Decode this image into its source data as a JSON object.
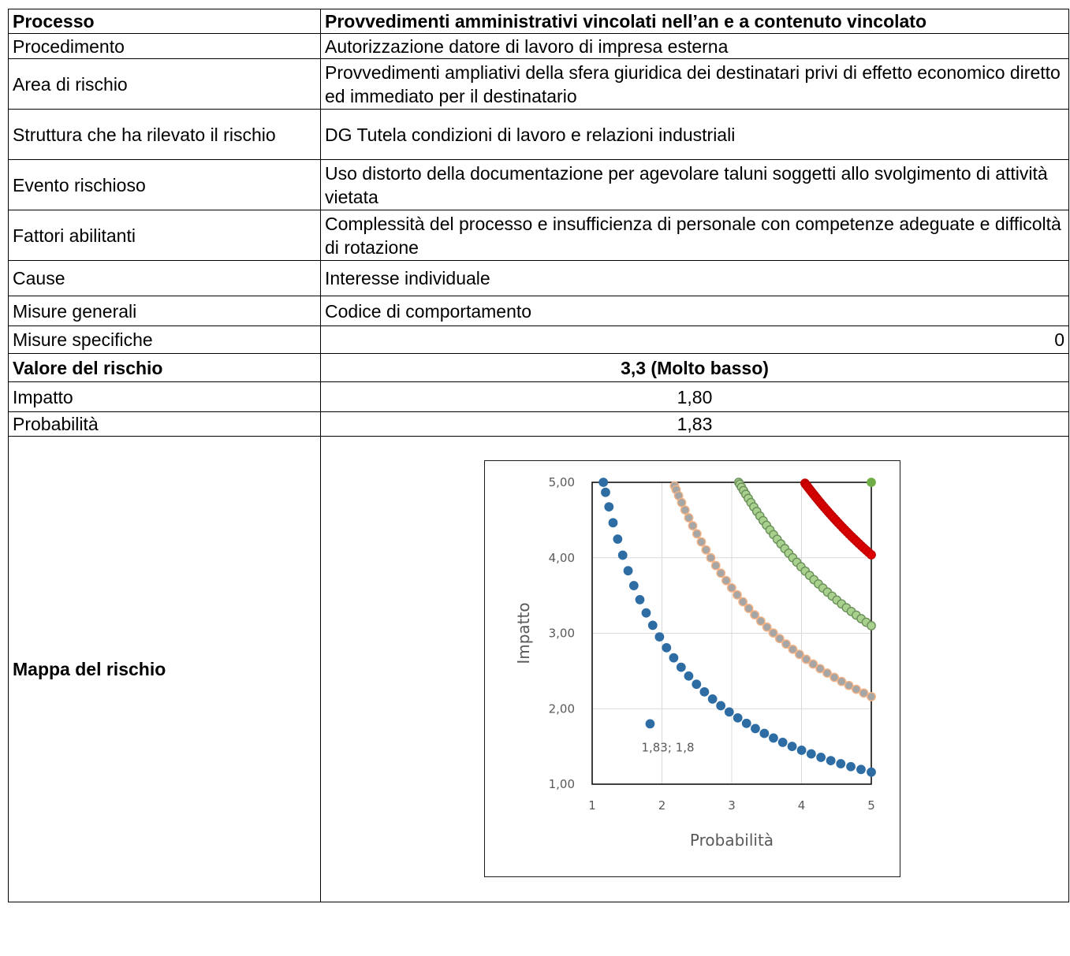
{
  "rows": {
    "processo": {
      "label": "Processo",
      "value": "Provvedimenti amministrativi vincolati nell’an e a contenuto vincolato"
    },
    "procedimento": {
      "label": "Procedimento",
      "value": "Autorizzazione datore di lavoro di impresa esterna"
    },
    "area_rischio": {
      "label": "Area di rischio",
      "value": "Provvedimenti ampliativi della sfera giuridica dei destinatari privi di effetto economico diretto ed immediato per il destinatario"
    },
    "struttura": {
      "label": "Struttura che ha rilevato il rischio",
      "value": "DG Tutela condizioni di lavoro e relazioni industriali"
    },
    "evento": {
      "label": "Evento rischioso",
      "value": "Uso distorto della documentazione per agevolare taluni soggetti allo svolgimento di attività vietata"
    },
    "fattori": {
      "label": "Fattori abilitanti",
      "value": "Complessità del processo e insufficienza di personale con competenze adeguate e difficoltà di rotazione"
    },
    "cause": {
      "label": "Cause",
      "value": "Interesse individuale"
    },
    "misure_generali": {
      "label": "Misure generali",
      "value": "Codice di comportamento"
    },
    "misure_specifiche": {
      "label": "Misure specifiche",
      "value": "0"
    },
    "valore": {
      "label": "Valore del rischio",
      "value": "3,3 (Molto basso)"
    },
    "impatto": {
      "label": "Impatto",
      "value": "1,80"
    },
    "probabilita": {
      "label": "Probabilità",
      "value": "1,83"
    },
    "mappa": {
      "label": "Mappa del rischio"
    }
  },
  "chart_data": {
    "type": "scatter",
    "xlabel": "Probabilità",
    "ylabel": "Impatto",
    "xlim": [
      1,
      5
    ],
    "ylim": [
      1,
      5
    ],
    "x_ticks": [
      "1",
      "2",
      "3",
      "4",
      "5"
    ],
    "y_ticks": [
      "1,00",
      "2,00",
      "3,00",
      "4,00",
      "5,00"
    ],
    "grid": true,
    "highlight_point": {
      "x": 1.83,
      "y": 1.8,
      "label": "1,83; 1,8",
      "color": "#2e6da4"
    },
    "series": [
      {
        "color": "#2e6da4",
        "stroke": "#2e6da4",
        "curve_product": 5.8,
        "x_range": [
          1.16,
          5
        ]
      },
      {
        "color": "#a6a6a6",
        "stroke": "#f4b183",
        "curve_product": 10.8,
        "x_range": [
          2.18,
          5
        ]
      },
      {
        "color": "#a9d18e",
        "stroke": "#6a8f5a",
        "curve_product": 15.5,
        "x_range": [
          3.1,
          5
        ]
      },
      {
        "color": "#e00000",
        "stroke": "#c00000",
        "curve_product": 20.2,
        "x_range": [
          4.05,
          5
        ]
      },
      {
        "color": "#70ad47",
        "stroke": "#70ad47",
        "points": [
          [
            5,
            5
          ]
        ]
      }
    ]
  }
}
